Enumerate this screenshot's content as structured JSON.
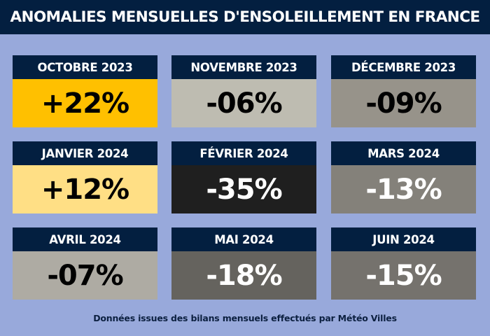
{
  "title": "ANOMALIES MENSUELLES D'ENSOLEILLEMENT EN FRANCE",
  "footer": "Données issues des bilans mensuels effectués par Météo Villes",
  "colors": {
    "background": "#98A9DB",
    "header": "#031F40"
  },
  "cards": [
    {
      "month": "OCTOBRE 2023",
      "value": "+22%",
      "bg": "#FFC000",
      "fg": "#000000"
    },
    {
      "month": "NOVEMBRE 2023",
      "value": "-06%",
      "bg": "#BEBCB1",
      "fg": "#000000"
    },
    {
      "month": "DÉCEMBRE 2023",
      "value": "-09%",
      "bg": "#97938A",
      "fg": "#000000"
    },
    {
      "month": "JANVIER 2024",
      "value": "+12%",
      "bg": "#FFDF85",
      "fg": "#000000"
    },
    {
      "month": "FÉVRIER 2024",
      "value": "-35%",
      "bg": "#1F1F1F",
      "fg": "#FFFFFF"
    },
    {
      "month": "MARS 2024",
      "value": "-13%",
      "bg": "#84817A",
      "fg": "#FFFFFF"
    },
    {
      "month": "AVRIL 2024",
      "value": "-07%",
      "bg": "#AEABA3",
      "fg": "#000000"
    },
    {
      "month": "MAI 2024",
      "value": "-18%",
      "bg": "#65635E",
      "fg": "#FFFFFF"
    },
    {
      "month": "JUIN 2024",
      "value": "-15%",
      "bg": "#75726D",
      "fg": "#FFFFFF"
    }
  ],
  "chart_data": {
    "type": "table",
    "title": "ANOMALIES MENSUELLES D'ENSOLEILLEMENT EN FRANCE",
    "subtitle": "Données issues des bilans mensuels effectués par Météo Villes",
    "categories": [
      "OCTOBRE 2023",
      "NOVEMBRE 2023",
      "DÉCEMBRE 2023",
      "JANVIER 2024",
      "FÉVRIER 2024",
      "MARS 2024",
      "AVRIL 2024",
      "MAI 2024",
      "JUIN 2024"
    ],
    "values": [
      22,
      -6,
      -9,
      12,
      -35,
      -13,
      -7,
      -18,
      -15
    ],
    "unit": "%",
    "layout": "3x3 grid"
  }
}
